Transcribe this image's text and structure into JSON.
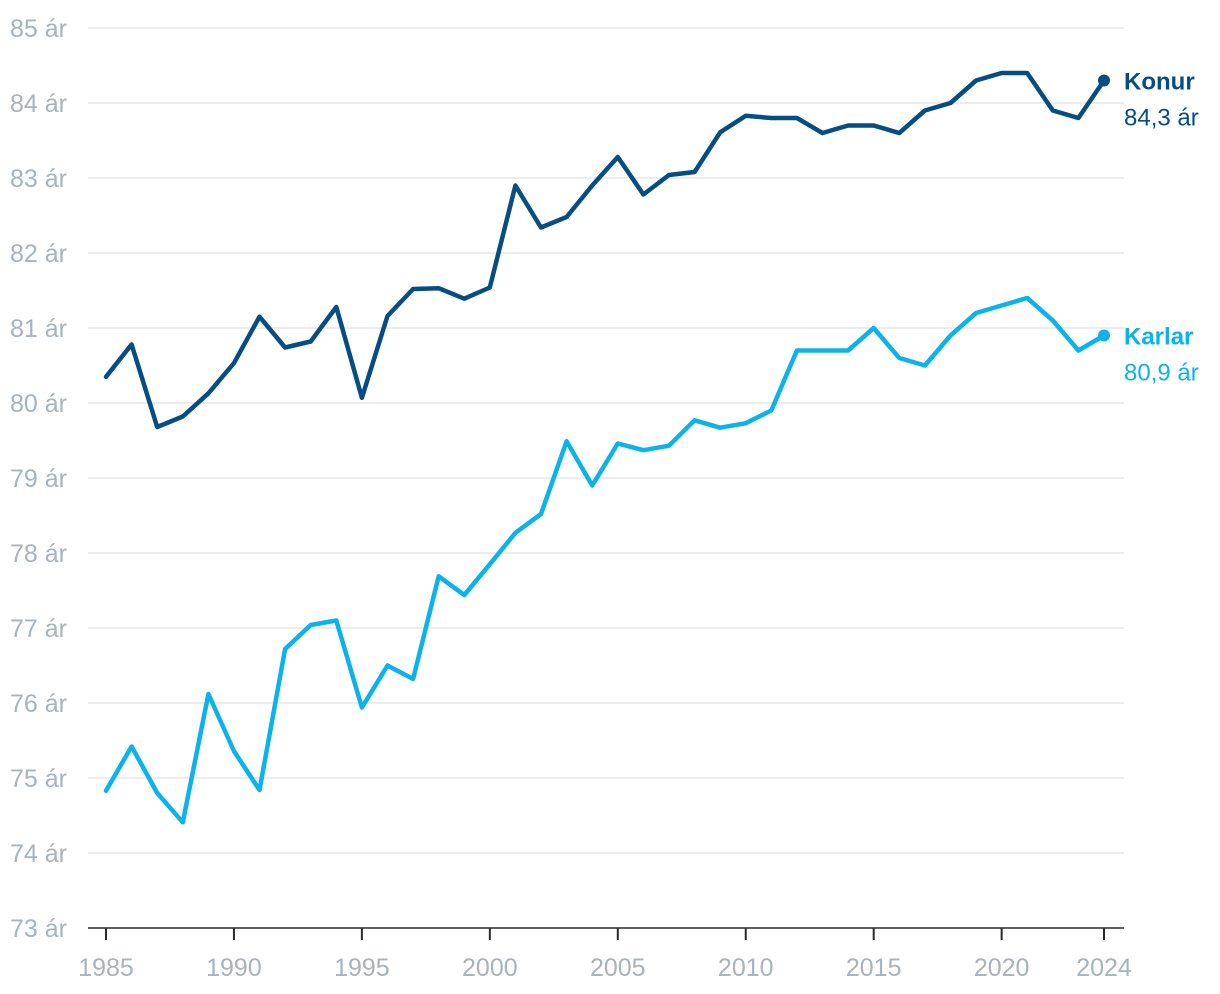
{
  "chart_data": {
    "type": "line",
    "title": "",
    "xlabel": "",
    "ylabel": "",
    "y_unit": "ár",
    "ylim": [
      73,
      85
    ],
    "xlim": [
      1985,
      2024
    ],
    "grid": true,
    "y_ticks": [
      {
        "value": 73,
        "label": "73 ár"
      },
      {
        "value": 74,
        "label": "74 ár"
      },
      {
        "value": 75,
        "label": "75 ár"
      },
      {
        "value": 76,
        "label": "76 ár"
      },
      {
        "value": 77,
        "label": "77 ár"
      },
      {
        "value": 78,
        "label": "78 ár"
      },
      {
        "value": 79,
        "label": "79 ár"
      },
      {
        "value": 80,
        "label": "80 ár"
      },
      {
        "value": 81,
        "label": "81 ár"
      },
      {
        "value": 82,
        "label": "82 ár"
      },
      {
        "value": 83,
        "label": "83 ár"
      },
      {
        "value": 84,
        "label": "84 ár"
      },
      {
        "value": 85,
        "label": "85 ár"
      }
    ],
    "x_ticks": [
      {
        "value": 1985,
        "label": "1985"
      },
      {
        "value": 1990,
        "label": "1990"
      },
      {
        "value": 1995,
        "label": "1995"
      },
      {
        "value": 2000,
        "label": "2000"
      },
      {
        "value": 2005,
        "label": "2005"
      },
      {
        "value": 2010,
        "label": "2010"
      },
      {
        "value": 2015,
        "label": "2015"
      },
      {
        "value": 2020,
        "label": "2020"
      },
      {
        "value": 2024,
        "label": "2024"
      }
    ],
    "x": [
      1985,
      1986,
      1987,
      1988,
      1989,
      1990,
      1991,
      1992,
      1993,
      1994,
      1995,
      1996,
      1997,
      1998,
      1999,
      2000,
      2001,
      2002,
      2003,
      2004,
      2005,
      2006,
      2007,
      2008,
      2009,
      2010,
      2011,
      2012,
      2013,
      2014,
      2015,
      2016,
      2017,
      2018,
      2019,
      2020,
      2021,
      2022,
      2023,
      2024
    ],
    "series": [
      {
        "name": "Konur",
        "end_label": "84,3 ár",
        "color": "#064d82",
        "values": [
          80.35,
          80.78,
          79.68,
          79.82,
          80.13,
          80.53,
          81.15,
          80.74,
          80.82,
          81.28,
          80.07,
          81.16,
          81.52,
          81.53,
          81.39,
          81.54,
          82.9,
          82.34,
          82.48,
          82.9,
          83.28,
          82.78,
          83.04,
          83.08,
          83.61,
          83.83,
          83.8,
          83.8,
          83.6,
          83.7,
          83.7,
          83.6,
          83.9,
          84.0,
          84.3,
          84.4,
          84.4,
          83.9,
          83.8,
          84.3
        ]
      },
      {
        "name": "Karlar",
        "end_label": "80,9 ár",
        "color": "#0bb3ea",
        "values": [
          74.83,
          75.42,
          74.8,
          74.41,
          76.12,
          75.36,
          74.84,
          76.72,
          77.04,
          77.1,
          75.94,
          76.5,
          76.32,
          77.69,
          77.44,
          77.85,
          78.27,
          78.52,
          79.49,
          78.9,
          79.46,
          79.37,
          79.43,
          79.77,
          79.67,
          79.73,
          79.9,
          80.7,
          80.7,
          80.7,
          81.0,
          80.6,
          80.5,
          80.9,
          81.2,
          81.3,
          81.4,
          81.1,
          80.7,
          80.9
        ]
      }
    ]
  }
}
